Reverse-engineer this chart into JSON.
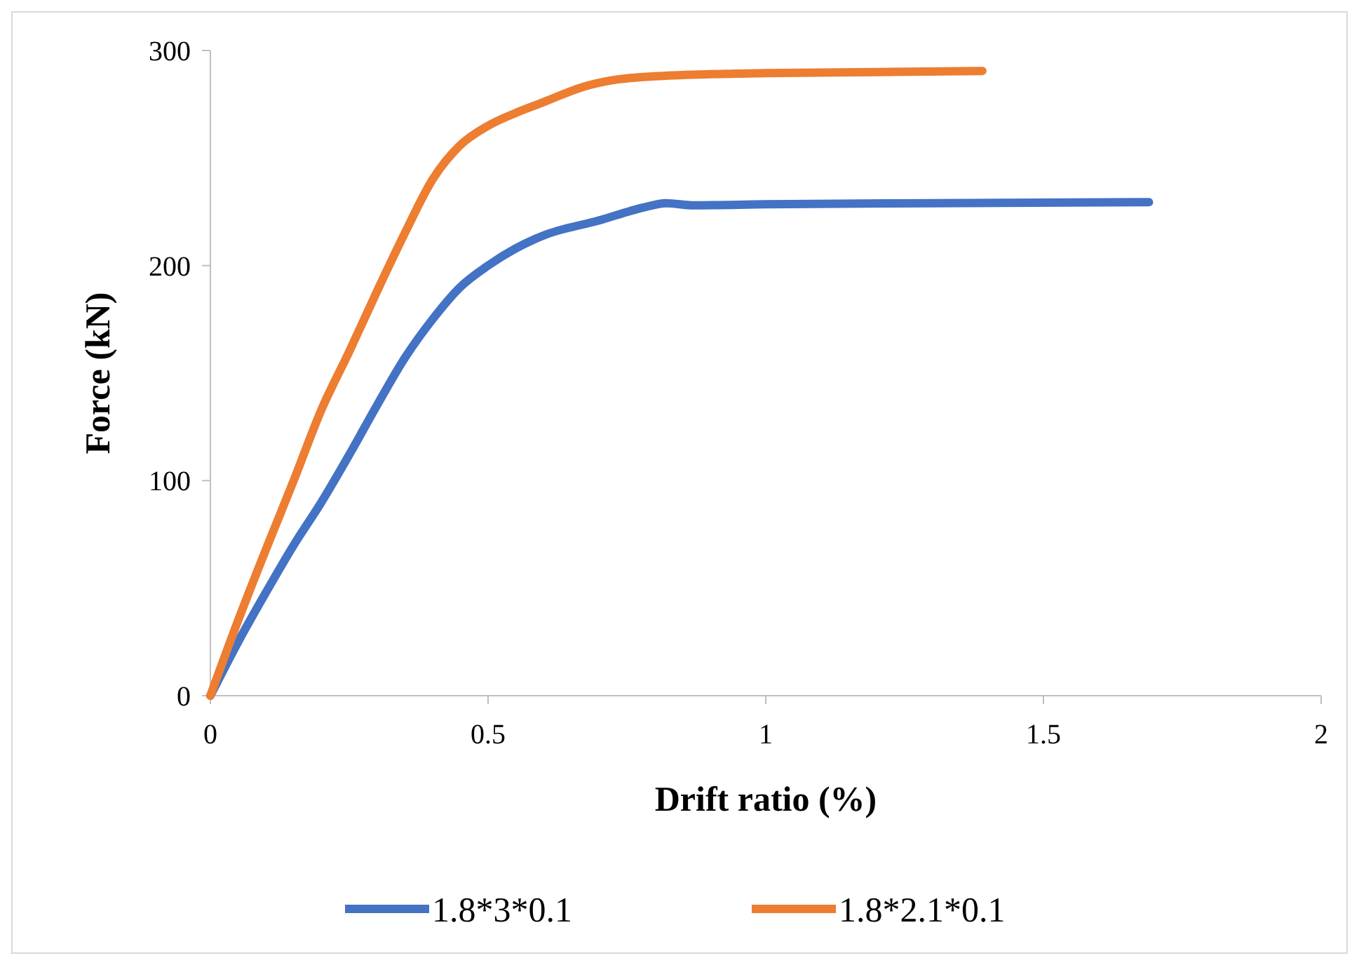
{
  "chart_data": {
    "type": "line",
    "xlabel": "Drift ratio (%)",
    "ylabel": "Force (kN)",
    "xlim": [
      0,
      2
    ],
    "xticks": [
      0,
      0.5,
      1,
      1.5,
      2
    ],
    "ylim": [
      0,
      300
    ],
    "yticks": [
      0,
      100,
      200,
      300
    ],
    "grid": false,
    "legend": "bottom",
    "line_style": "solid",
    "marker": "none",
    "series": [
      {
        "name": "1.8*3*0.1",
        "color": "#4472c4",
        "x": [
          0,
          0.05,
          0.1,
          0.15,
          0.2,
          0.25,
          0.3,
          0.35,
          0.4,
          0.45,
          0.5,
          0.55,
          0.6,
          0.7,
          0.78,
          0.82,
          0.87,
          1,
          1.3,
          1.69
        ],
        "values": [
          0,
          25,
          48,
          70,
          90,
          112,
          135,
          157,
          175,
          190,
          200,
          208,
          214,
          221,
          227,
          229,
          228,
          228.5,
          229,
          229.5
        ]
      },
      {
        "name": "1.8*2.1*0.1",
        "color": "#ed7d31",
        "x": [
          0,
          0.05,
          0.1,
          0.15,
          0.2,
          0.25,
          0.3,
          0.35,
          0.4,
          0.45,
          0.5,
          0.55,
          0.6,
          0.67,
          0.72,
          0.8,
          0.9,
          1,
          1.2,
          1.39
        ],
        "values": [
          0,
          35,
          68,
          100,
          133,
          160,
          188,
          215,
          240,
          256,
          265,
          271,
          276,
          283,
          286,
          288,
          289,
          289.5,
          290,
          290.5
        ]
      }
    ]
  }
}
